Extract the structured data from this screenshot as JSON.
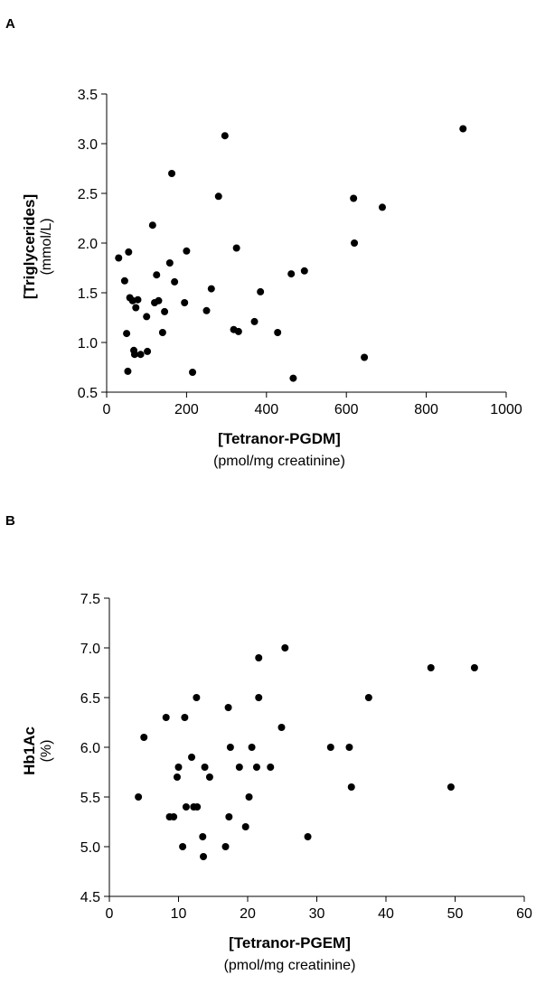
{
  "panels": [
    {
      "label": "A"
    },
    {
      "label": "B"
    }
  ],
  "chart_data": [
    {
      "type": "scatter",
      "xlabel": "[Tetranor-PGDM]",
      "xlabel_sub": "(pmol/mg creatinine)",
      "ylabel": "[Triglycerides]",
      "ylabel_sub": "(mmol/L)",
      "xlim": [
        0,
        1000
      ],
      "ylim": [
        0.5,
        3.5
      ],
      "xticks": [
        "0",
        "200",
        "400",
        "600",
        "800",
        "1000"
      ],
      "yticks": [
        "0.5",
        "1.0",
        "1.5",
        "2.0",
        "2.5",
        "3.0",
        "3.5"
      ],
      "grid": false,
      "points": [
        [
          30,
          1.85
        ],
        [
          45,
          1.62
        ],
        [
          50,
          1.09
        ],
        [
          53,
          0.71
        ],
        [
          55,
          1.91
        ],
        [
          58,
          1.45
        ],
        [
          65,
          1.42
        ],
        [
          68,
          0.92
        ],
        [
          70,
          0.88
        ],
        [
          73,
          1.35
        ],
        [
          78,
          1.43
        ],
        [
          85,
          0.88
        ],
        [
          100,
          1.26
        ],
        [
          102,
          0.91
        ],
        [
          115,
          2.18
        ],
        [
          120,
          1.4
        ],
        [
          125,
          1.68
        ],
        [
          130,
          1.42
        ],
        [
          140,
          1.1
        ],
        [
          145,
          1.31
        ],
        [
          158,
          1.8
        ],
        [
          163,
          2.7
        ],
        [
          170,
          1.61
        ],
        [
          195,
          1.4
        ],
        [
          200,
          1.92
        ],
        [
          215,
          0.7
        ],
        [
          250,
          1.32
        ],
        [
          262,
          1.54
        ],
        [
          280,
          2.47
        ],
        [
          296,
          3.08
        ],
        [
          318,
          1.13
        ],
        [
          325,
          1.95
        ],
        [
          330,
          1.11
        ],
        [
          370,
          1.21
        ],
        [
          385,
          1.51
        ],
        [
          428,
          1.1
        ],
        [
          462,
          1.69
        ],
        [
          467,
          0.64
        ],
        [
          495,
          1.72
        ],
        [
          618,
          2.45
        ],
        [
          620,
          2.0
        ],
        [
          645,
          0.85
        ],
        [
          690,
          2.36
        ],
        [
          892,
          3.15
        ]
      ]
    },
    {
      "type": "scatter",
      "xlabel": "[Tetranor-PGEM]",
      "xlabel_sub": "(pmol/mg creatinine)",
      "ylabel": "Hb1Ac",
      "ylabel_sub": "(%)",
      "xlim": [
        0,
        60
      ],
      "ylim": [
        4.5,
        7.5
      ],
      "xticks": [
        "0",
        "10",
        "20",
        "30",
        "40",
        "50",
        "60"
      ],
      "yticks": [
        "4.5",
        "5.0",
        "5.5",
        "6.0",
        "6.5",
        "7.0",
        "7.5"
      ],
      "grid": false,
      "points": [
        [
          4.2,
          5.5
        ],
        [
          5.0,
          6.1
        ],
        [
          8.2,
          6.3
        ],
        [
          8.7,
          5.3
        ],
        [
          9.3,
          5.3
        ],
        [
          9.8,
          5.7
        ],
        [
          10.0,
          5.8
        ],
        [
          10.6,
          5.0
        ],
        [
          10.9,
          6.3
        ],
        [
          11.1,
          5.4
        ],
        [
          11.9,
          5.9
        ],
        [
          12.2,
          5.4
        ],
        [
          12.6,
          6.5
        ],
        [
          12.7,
          5.4
        ],
        [
          13.5,
          5.1
        ],
        [
          13.6,
          4.9
        ],
        [
          13.8,
          5.8
        ],
        [
          14.5,
          5.7
        ],
        [
          16.8,
          5.0
        ],
        [
          17.2,
          6.4
        ],
        [
          17.3,
          5.3
        ],
        [
          17.5,
          6.0
        ],
        [
          18.8,
          5.8
        ],
        [
          19.7,
          5.2
        ],
        [
          20.2,
          5.5
        ],
        [
          20.6,
          6.0
        ],
        [
          21.3,
          5.8
        ],
        [
          21.6,
          6.5
        ],
        [
          21.6,
          6.9
        ],
        [
          23.3,
          5.8
        ],
        [
          24.9,
          6.2
        ],
        [
          25.4,
          7.0
        ],
        [
          28.7,
          5.1
        ],
        [
          32.0,
          6.0
        ],
        [
          34.7,
          6.0
        ],
        [
          35.0,
          5.6
        ],
        [
          37.5,
          6.5
        ],
        [
          46.5,
          6.8
        ],
        [
          49.4,
          5.6
        ],
        [
          52.8,
          6.8
        ]
      ]
    }
  ]
}
